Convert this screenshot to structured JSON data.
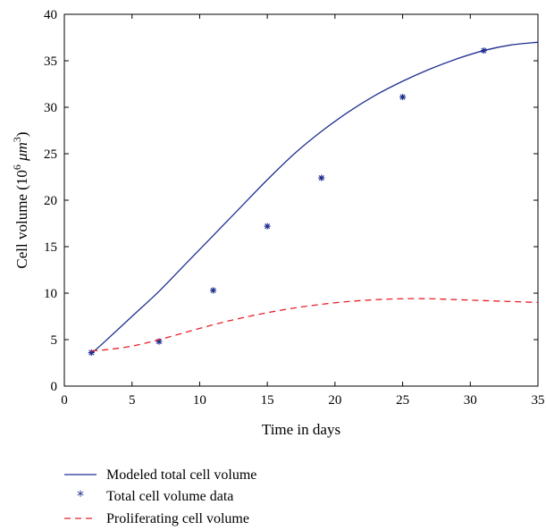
{
  "chart_data": {
    "type": "line",
    "xlabel": "Time in days",
    "ylabel": "Cell volume (10",
    "ylabel_exp": "6",
    "ylabel_unit": " μm",
    "ylabel_unit_exp": "3",
    "ylabel_close": ")",
    "xlim": [
      0,
      35
    ],
    "ylim": [
      0,
      40
    ],
    "xticks": [
      "0",
      "5",
      "10",
      "15",
      "20",
      "25",
      "30",
      "35"
    ],
    "yticks": [
      "0",
      "5",
      "10",
      "15",
      "20",
      "25",
      "30",
      "35",
      "40"
    ],
    "grid": false,
    "legend_position": "bottom",
    "series": [
      {
        "name": "Modeled total cell volume",
        "style": "solid-line",
        "color": "#1f2f8f",
        "x": [
          2,
          3,
          5,
          7,
          9,
          11,
          13,
          15,
          17,
          19,
          21,
          23,
          25,
          27,
          29,
          31,
          33,
          35
        ],
        "y": [
          3.5,
          4.8,
          7.5,
          10.2,
          13.2,
          16.2,
          19.2,
          22.2,
          25.0,
          27.4,
          29.5,
          31.3,
          32.8,
          34.1,
          35.2,
          36.1,
          36.7,
          37.0
        ]
      },
      {
        "name": "Total cell volume data",
        "style": "star-marker",
        "color": "#1f2f8f",
        "x": [
          2,
          7,
          11,
          15,
          19,
          25,
          31
        ],
        "y": [
          3.6,
          4.8,
          10.3,
          17.2,
          22.4,
          31.1,
          36.1
        ]
      },
      {
        "name": "Proliferating cell volume",
        "style": "dashed-line",
        "color": "#e8202a",
        "x": [
          2,
          3,
          5,
          7,
          9,
          11,
          13,
          15,
          17,
          19,
          21,
          23,
          25,
          27,
          29,
          31,
          33,
          35
        ],
        "y": [
          3.8,
          3.9,
          4.3,
          5.0,
          5.8,
          6.6,
          7.3,
          7.9,
          8.4,
          8.8,
          9.1,
          9.3,
          9.4,
          9.4,
          9.3,
          9.2,
          9.1,
          9.0
        ]
      }
    ]
  }
}
